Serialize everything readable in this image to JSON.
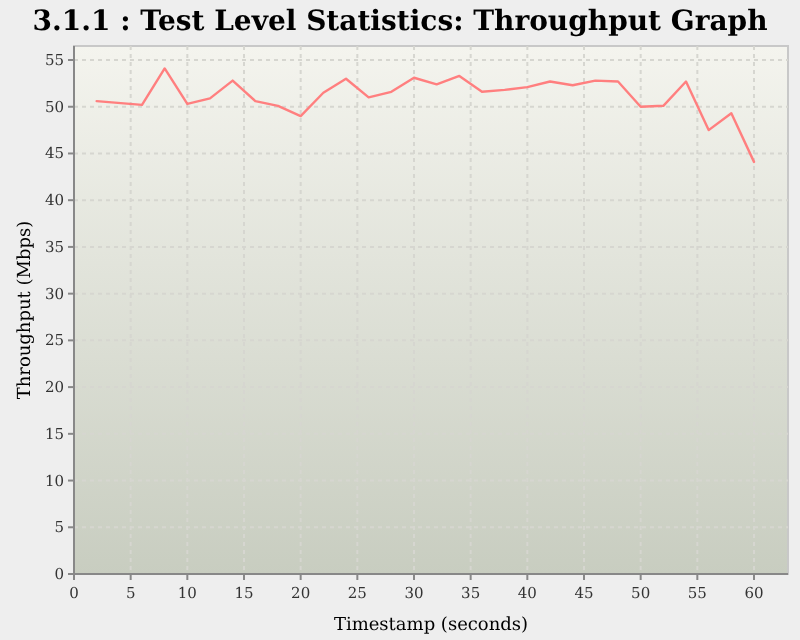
{
  "chart_data": {
    "type": "line",
    "title": "3.1.1 : Test Level Statistics: Throughput Graph",
    "xlabel": "Timestamp (seconds)",
    "ylabel": "Throughput (Mbps)",
    "x": [
      2,
      6,
      8,
      10,
      12,
      14,
      16,
      18,
      20,
      22,
      24,
      26,
      28,
      30,
      32,
      34,
      36,
      38,
      40,
      42,
      44,
      46,
      48,
      50,
      52,
      54,
      56,
      58,
      60
    ],
    "series": [
      {
        "color": "#ff7f7f",
        "values": [
          50.6,
          50.2,
          54.1,
          50.3,
          50.9,
          52.8,
          50.6,
          50.1,
          49.0,
          51.5,
          53.0,
          51.0,
          51.6,
          53.1,
          52.4,
          53.3,
          51.6,
          51.8,
          52.1,
          52.7,
          52.3,
          52.8,
          52.7,
          50.0,
          50.1,
          52.7,
          47.5,
          49.3,
          44.1
        ]
      }
    ],
    "xlim": [
      0,
      63
    ],
    "ylim": [
      0,
      56.5
    ],
    "xticks": [
      0,
      5,
      10,
      15,
      20,
      25,
      30,
      35,
      40,
      45,
      50,
      55,
      60
    ],
    "yticks": [
      0,
      5,
      10,
      15,
      20,
      25,
      30,
      35,
      40,
      45,
      50,
      55
    ],
    "grid": true,
    "marker": "none",
    "line_style": "solid"
  }
}
